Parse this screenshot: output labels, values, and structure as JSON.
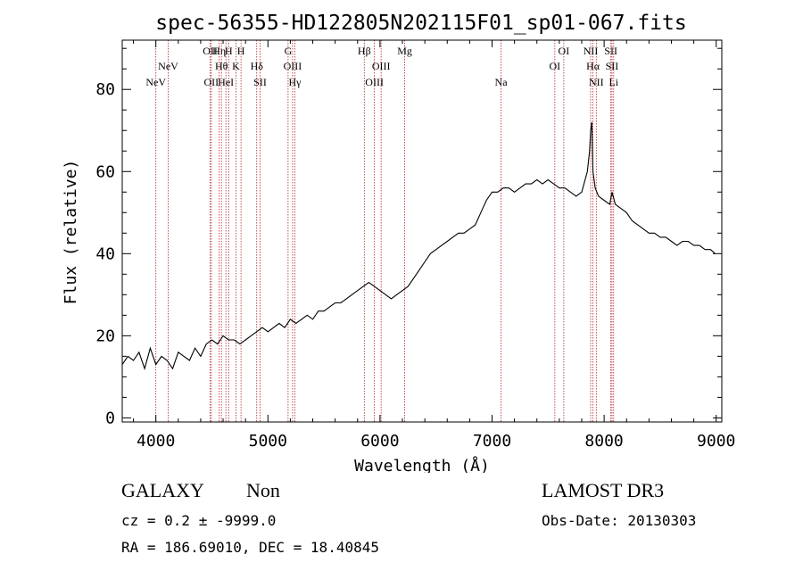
{
  "chart_data": {
    "type": "line",
    "title": "spec-56355-HD122805N202115F01_sp01-067.fits",
    "xlabel": "Wavelength (Å)",
    "ylabel": "Flux (relative)",
    "xlim": [
      3700,
      9050
    ],
    "ylim": [
      -1,
      92
    ],
    "x_ticks": [
      4000,
      5000,
      6000,
      7000,
      8000,
      9000
    ],
    "x_tick_labels": [
      "4000",
      "5000",
      "6000",
      "7000",
      "8000",
      "9000"
    ],
    "y_ticks": [
      0,
      20,
      40,
      60,
      80
    ],
    "y_tick_labels": [
      "0",
      "20",
      "40",
      "60",
      "80"
    ],
    "series": [
      {
        "name": "spectrum",
        "x": [
          3700,
          3750,
          3800,
          3850,
          3900,
          3950,
          4000,
          4050,
          4100,
          4150,
          4200,
          4250,
          4300,
          4350,
          4400,
          4450,
          4500,
          4550,
          4600,
          4650,
          4700,
          4750,
          4800,
          4850,
          4900,
          4950,
          5000,
          5050,
          5100,
          5150,
          5200,
          5250,
          5300,
          5350,
          5400,
          5450,
          5500,
          5550,
          5600,
          5650,
          5700,
          5750,
          5800,
          5850,
          5900,
          5950,
          6000,
          6050,
          6100,
          6150,
          6200,
          6250,
          6300,
          6350,
          6400,
          6450,
          6500,
          6550,
          6600,
          6650,
          6700,
          6750,
          6800,
          6850,
          6900,
          6950,
          7000,
          7050,
          7100,
          7150,
          7200,
          7250,
          7300,
          7350,
          7400,
          7450,
          7500,
          7550,
          7600,
          7650,
          7700,
          7750,
          7800,
          7850,
          7870,
          7880,
          7890,
          7900,
          7920,
          7950,
          8000,
          8050,
          8070,
          8100,
          8150,
          8200,
          8250,
          8300,
          8350,
          8400,
          8450,
          8500,
          8550,
          8600,
          8650,
          8700,
          8750,
          8800,
          8850,
          8900,
          8950,
          8990
        ],
        "y": [
          13,
          15,
          14,
          16,
          12,
          17,
          13,
          15,
          14,
          12,
          16,
          15,
          14,
          17,
          15,
          18,
          19,
          18,
          20,
          19,
          19,
          18,
          19,
          20,
          21,
          22,
          21,
          22,
          23,
          22,
          24,
          23,
          24,
          25,
          24,
          26,
          26,
          27,
          28,
          28,
          29,
          30,
          31,
          32,
          33,
          32,
          31,
          30,
          29,
          30,
          31,
          32,
          34,
          36,
          38,
          40,
          41,
          42,
          43,
          44,
          45,
          45,
          46,
          47,
          50,
          53,
          55,
          55,
          56,
          56,
          55,
          56,
          57,
          57,
          58,
          57,
          58,
          57,
          56,
          56,
          55,
          54,
          55,
          60,
          65,
          70,
          72,
          60,
          56,
          54,
          53,
          52,
          55,
          52,
          51,
          50,
          48,
          47,
          46,
          45,
          45,
          44,
          44,
          43,
          42,
          43,
          43,
          42,
          42,
          41,
          41,
          40
        ]
      }
    ],
    "lines": [
      {
        "wl": 4000,
        "label": "NeV",
        "row": 3
      },
      {
        "wl": 4110,
        "label": "NeV",
        "row": 2
      },
      {
        "wl": 4485,
        "label": "OII",
        "row": 1
      },
      {
        "wl": 4495,
        "label": "OII",
        "row": 3
      },
      {
        "wl": 4565,
        "label": "Hη",
        "row": 1
      },
      {
        "wl": 4585,
        "label": "Hθ",
        "row": 2
      },
      {
        "wl": 4625,
        "label": "HeI",
        "row": 3
      },
      {
        "wl": 4650,
        "label": "H",
        "row": 1
      },
      {
        "wl": 4715,
        "label": "K",
        "row": 2
      },
      {
        "wl": 4760,
        "label": "H",
        "row": 1
      },
      {
        "wl": 4900,
        "label": "Hδ",
        "row": 2
      },
      {
        "wl": 4930,
        "label": "SII",
        "row": 3
      },
      {
        "wl": 5180,
        "label": "G",
        "row": 1
      },
      {
        "wl": 5220,
        "label": "OIII",
        "row": 2
      },
      {
        "wl": 5240,
        "label": "Hγ",
        "row": 3
      },
      {
        "wl": 5860,
        "label": "Hβ",
        "row": 1
      },
      {
        "wl": 5950,
        "label": "OIII",
        "row": 3
      },
      {
        "wl": 6010,
        "label": "OIII",
        "row": 2
      },
      {
        "wl": 6220,
        "label": "Mg",
        "row": 1
      },
      {
        "wl": 7080,
        "label": "Na",
        "row": 3
      },
      {
        "wl": 7560,
        "label": "OI",
        "row": 2
      },
      {
        "wl": 7640,
        "label": "OI",
        "row": 1
      },
      {
        "wl": 7880,
        "label": "NII",
        "row": 1
      },
      {
        "wl": 7900,
        "label": "Hα",
        "row": 2
      },
      {
        "wl": 7930,
        "label": "NII",
        "row": 3
      },
      {
        "wl": 8060,
        "label": "SII",
        "row": 1
      },
      {
        "wl": 8070,
        "label": "SII",
        "row": 2
      },
      {
        "wl": 8085,
        "label": "Li",
        "row": 3
      }
    ]
  },
  "info": {
    "class": "GALAXY",
    "subclass": "Non",
    "cz": "cz = 0.2 ± -9999.0",
    "radec": "RA = 186.69010, DEC =  18.40845",
    "survey": "LAMOST DR3",
    "obsdate": "Obs-Date: 20130303"
  },
  "colors": {
    "line_marker": "#b22222",
    "spectrum": "#000000"
  }
}
